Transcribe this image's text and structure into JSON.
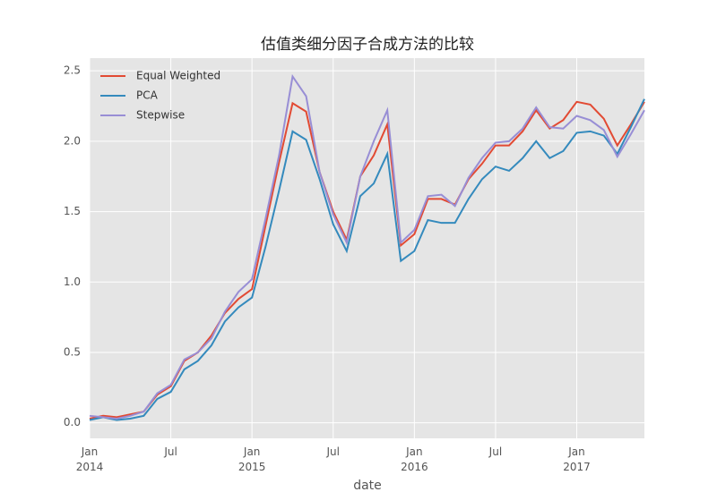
{
  "chart_data": {
    "type": "line",
    "title": "估值类细分因子合成方法的比较",
    "xlabel": "date",
    "x": [
      "2014-01",
      "2014-02",
      "2014-03",
      "2014-04",
      "2014-05",
      "2014-06",
      "2014-07",
      "2014-08",
      "2014-09",
      "2014-10",
      "2014-11",
      "2014-12",
      "2015-01",
      "2015-02",
      "2015-03",
      "2015-04",
      "2015-05",
      "2015-06",
      "2015-07",
      "2015-08",
      "2015-09",
      "2015-10",
      "2015-11",
      "2015-12",
      "2016-01",
      "2016-02",
      "2016-03",
      "2016-04",
      "2016-05",
      "2016-06",
      "2016-07",
      "2016-08",
      "2016-09",
      "2016-10",
      "2016-11",
      "2016-12",
      "2017-01",
      "2017-02",
      "2017-03",
      "2017-04",
      "2017-05",
      "2017-06"
    ],
    "series": [
      {
        "name": "Equal Weighted",
        "color": "#e24a33",
        "values": [
          0.03,
          0.05,
          0.04,
          0.06,
          0.08,
          0.2,
          0.26,
          0.44,
          0.5,
          0.62,
          0.78,
          0.88,
          0.95,
          1.4,
          1.85,
          2.27,
          2.21,
          1.78,
          1.5,
          1.3,
          1.75,
          1.9,
          2.12,
          1.26,
          1.34,
          1.59,
          1.59,
          1.55,
          1.73,
          1.84,
          1.97,
          1.97,
          2.07,
          2.22,
          2.09,
          2.15,
          2.28,
          2.26,
          2.16,
          1.97,
          2.12,
          2.28
        ]
      },
      {
        "name": "PCA",
        "color": "#348abd",
        "values": [
          0.02,
          0.04,
          0.02,
          0.03,
          0.05,
          0.17,
          0.22,
          0.38,
          0.44,
          0.55,
          0.72,
          0.82,
          0.89,
          1.25,
          1.65,
          2.07,
          2.01,
          1.73,
          1.41,
          1.22,
          1.61,
          1.7,
          1.91,
          1.15,
          1.22,
          1.44,
          1.42,
          1.42,
          1.59,
          1.73,
          1.82,
          1.79,
          1.88,
          2.0,
          1.88,
          1.93,
          2.06,
          2.07,
          2.04,
          1.91,
          2.1,
          2.3
        ]
      },
      {
        "name": "Stepwise",
        "color": "#988ed5",
        "values": [
          0.05,
          0.04,
          0.03,
          0.05,
          0.08,
          0.21,
          0.27,
          0.45,
          0.5,
          0.6,
          0.79,
          0.93,
          1.02,
          1.45,
          1.9,
          2.46,
          2.32,
          1.78,
          1.48,
          1.28,
          1.75,
          2.0,
          2.22,
          1.28,
          1.37,
          1.61,
          1.62,
          1.54,
          1.74,
          1.88,
          1.99,
          2.0,
          2.09,
          2.24,
          2.1,
          2.09,
          2.18,
          2.15,
          2.08,
          1.89,
          2.05,
          2.22
        ]
      }
    ],
    "xlim": [
      "2014-01",
      "2017-06"
    ],
    "xticks": [
      {
        "value": "2014-01",
        "label": "Jan 2014"
      },
      {
        "value": "2014-07",
        "label": "Jul"
      },
      {
        "value": "2015-01",
        "label": "Jan 2015"
      },
      {
        "value": "2015-07",
        "label": "Jul"
      },
      {
        "value": "2016-01",
        "label": "Jan 2016"
      },
      {
        "value": "2016-07",
        "label": "Jul"
      },
      {
        "value": "2017-01",
        "label": "Jan 2017"
      }
    ],
    "ylim": [
      -0.11,
      2.59
    ],
    "yticks": [
      {
        "value": 0,
        "label": "0.0"
      },
      0.5,
      {
        "value": 1,
        "label": "1.0"
      },
      1.5,
      {
        "value": 2,
        "label": "2.0"
      },
      2.5
    ],
    "grid": true,
    "legend": "upper left"
  }
}
